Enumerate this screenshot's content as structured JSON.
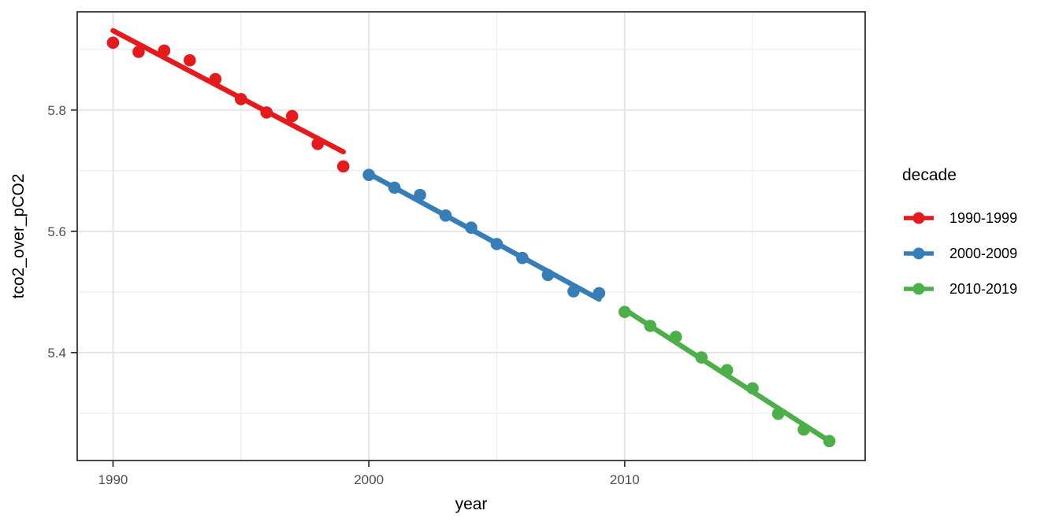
{
  "chart_data": {
    "type": "scatter",
    "title": "",
    "xlabel": "year",
    "ylabel": "tco2_over_pCO2",
    "xlim": [
      1988.6,
      2019.4
    ],
    "ylim": [
      5.222,
      5.962
    ],
    "grid": true,
    "legend_position": "right",
    "x_ticks": {
      "values": [
        1990,
        2000,
        2010
      ],
      "labels": [
        "1990",
        "2000",
        "2010"
      ]
    },
    "y_ticks": {
      "values": [
        5.4,
        5.6,
        5.8
      ],
      "labels": [
        "5.4",
        "5.6",
        "5.8"
      ]
    },
    "x_minor_gridlines": [
      1995,
      2005,
      2015
    ],
    "y_minor_gridlines": [
      5.3,
      5.5,
      5.7,
      5.9
    ],
    "legend": {
      "title": "decade"
    },
    "series": [
      {
        "name": "1990-1999",
        "color": "#E41A1C",
        "x": [
          1990,
          1991,
          1992,
          1993,
          1994,
          1995,
          1996,
          1997,
          1998,
          1999
        ],
        "y": [
          5.911,
          5.896,
          5.898,
          5.882,
          5.851,
          5.818,
          5.796,
          5.79,
          5.744,
          5.707
        ],
        "trend": {
          "x": [
            1990,
            1999
          ],
          "y": [
            5.931,
            5.731
          ]
        }
      },
      {
        "name": "2000-2009",
        "color": "#377EB8",
        "x": [
          2000,
          2001,
          2002,
          2003,
          2004,
          2005,
          2006,
          2007,
          2008,
          2009
        ],
        "y": [
          5.693,
          5.672,
          5.66,
          5.626,
          5.606,
          5.579,
          5.556,
          5.528,
          5.501,
          5.498
        ],
        "trend": {
          "x": [
            2000,
            2009
          ],
          "y": [
            5.695,
            5.488
          ]
        }
      },
      {
        "name": "2010-2019",
        "color": "#4DAF4A",
        "x": [
          2010,
          2011,
          2012,
          2013,
          2014,
          2015,
          2016,
          2017,
          2018
        ],
        "y": [
          5.467,
          5.444,
          5.426,
          5.392,
          5.371,
          5.341,
          5.299,
          5.273,
          5.254
        ],
        "trend": {
          "x": [
            2010,
            2018
          ],
          "y": [
            5.471,
            5.254
          ]
        }
      }
    ]
  }
}
